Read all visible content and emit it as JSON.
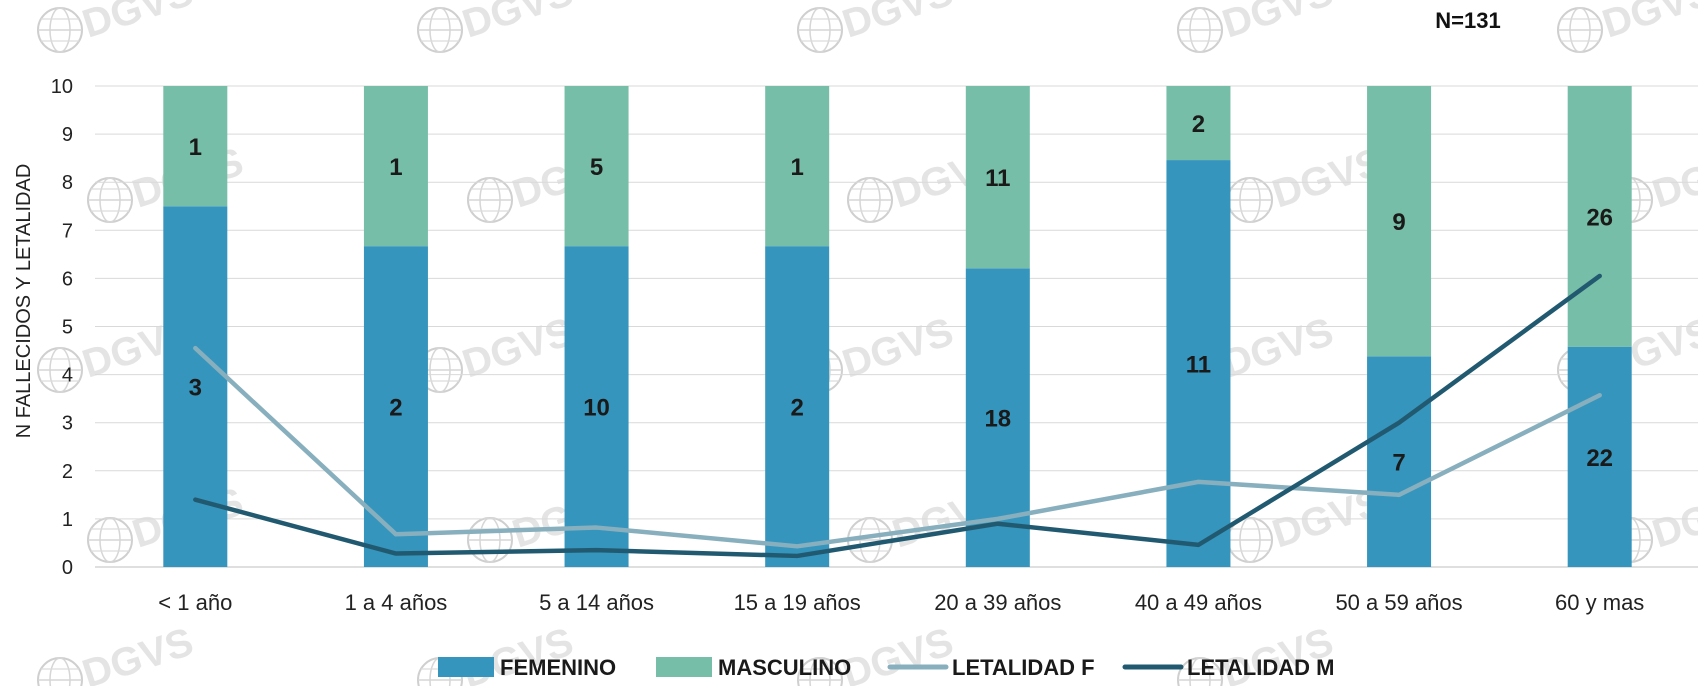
{
  "chart_data": {
    "type": "bar",
    "stacked": true,
    "annotation": "N=131",
    "ylabel": "N FALLECIDOS Y LETALIDAD",
    "xlabel": "",
    "ylim": [
      0,
      10
    ],
    "y_ticks": [
      "0",
      "1",
      "2",
      "3",
      "4",
      "5",
      "6",
      "7",
      "8",
      "9",
      "10"
    ],
    "categories": [
      "< 1 año",
      "1 a 4 años",
      "5 a 14 años",
      "15 a 19 años",
      "20 a 39 años",
      "40 a 49 años",
      "50 a 59 años",
      "60 y mas"
    ],
    "series": [
      {
        "name": "FEMENINO",
        "kind": "bar",
        "color": "#3595bd",
        "share": [
          75,
          66.7,
          66.7,
          66.7,
          62.1,
          84.6,
          43.8,
          45.8
        ],
        "labels": [
          "3",
          "2",
          "10",
          "2",
          "18",
          "11",
          "7",
          "22"
        ]
      },
      {
        "name": "MASCULINO",
        "kind": "bar",
        "color": "#76bea7",
        "share": [
          25,
          33.3,
          33.3,
          33.3,
          37.9,
          15.4,
          56.2,
          54.2
        ],
        "labels": [
          "1",
          "1",
          "5",
          "1",
          "11",
          "2",
          "9",
          "26"
        ]
      },
      {
        "name": "LETALIDAD F",
        "kind": "line",
        "color": "#88afbd",
        "values": [
          4.55,
          0.68,
          0.82,
          0.43,
          1.0,
          1.77,
          1.5,
          3.57
        ]
      },
      {
        "name": "LETALIDAD M",
        "kind": "line",
        "color": "#215a70",
        "values": [
          1.4,
          0.28,
          0.35,
          0.23,
          0.9,
          0.46,
          3.0,
          6.05
        ]
      }
    ],
    "legend_position": "bottom",
    "grid": true,
    "watermark": "DGVS Paraguay"
  }
}
